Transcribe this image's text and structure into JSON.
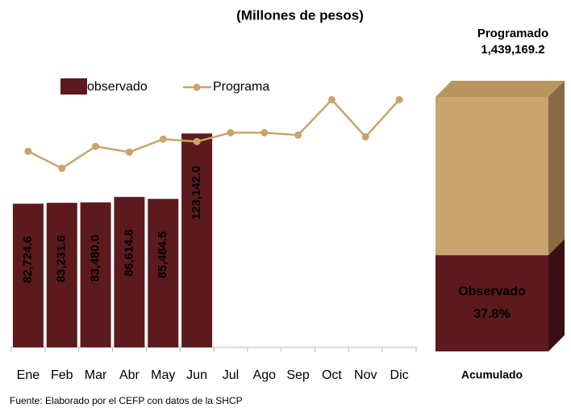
{
  "chart_data": [
    {
      "type": "bar-line",
      "title": "(Millones de pesos)",
      "categories": [
        "Ene",
        "Feb",
        "Mar",
        "Abr",
        "May",
        "Jun",
        "Jul",
        "Ago",
        "Sep",
        "Oct",
        "Nov",
        "Dic"
      ],
      "series": [
        {
          "name": "observado",
          "kind": "bar",
          "color": "#5c1a1f",
          "values": [
            82724.6,
            83231.6,
            83480.0,
            86614.8,
            85484.5,
            123142.0,
            null,
            null,
            null,
            null,
            null,
            null
          ],
          "value_labels": [
            "82,724.6",
            "83,231.6",
            "83,480.0",
            "86,614.8",
            "85,484.5",
            "123,142.0",
            null,
            null,
            null,
            null,
            null,
            null
          ]
        },
        {
          "name": "Programa",
          "kind": "line",
          "color": "#c9a46a",
          "values": [
            112900,
            103100,
            115700,
            112400,
            119900,
            118500,
            123600,
            123600,
            122200,
            142600,
            121200,
            142600
          ]
        }
      ],
      "ylim": [
        0,
        200000
      ],
      "source": "Fuente: Elaborado por el CEFP con datos de la SHCP"
    },
    {
      "type": "box3d",
      "title": "Programado",
      "total": 1439169.2,
      "total_label": "1,439,169.2",
      "part_name": "Observado",
      "part_pct": 37.8,
      "part_label": "37.8%",
      "xlabel": "Acumulado",
      "colors": [
        "#c9a46e",
        "#5c1a1f"
      ]
    }
  ]
}
